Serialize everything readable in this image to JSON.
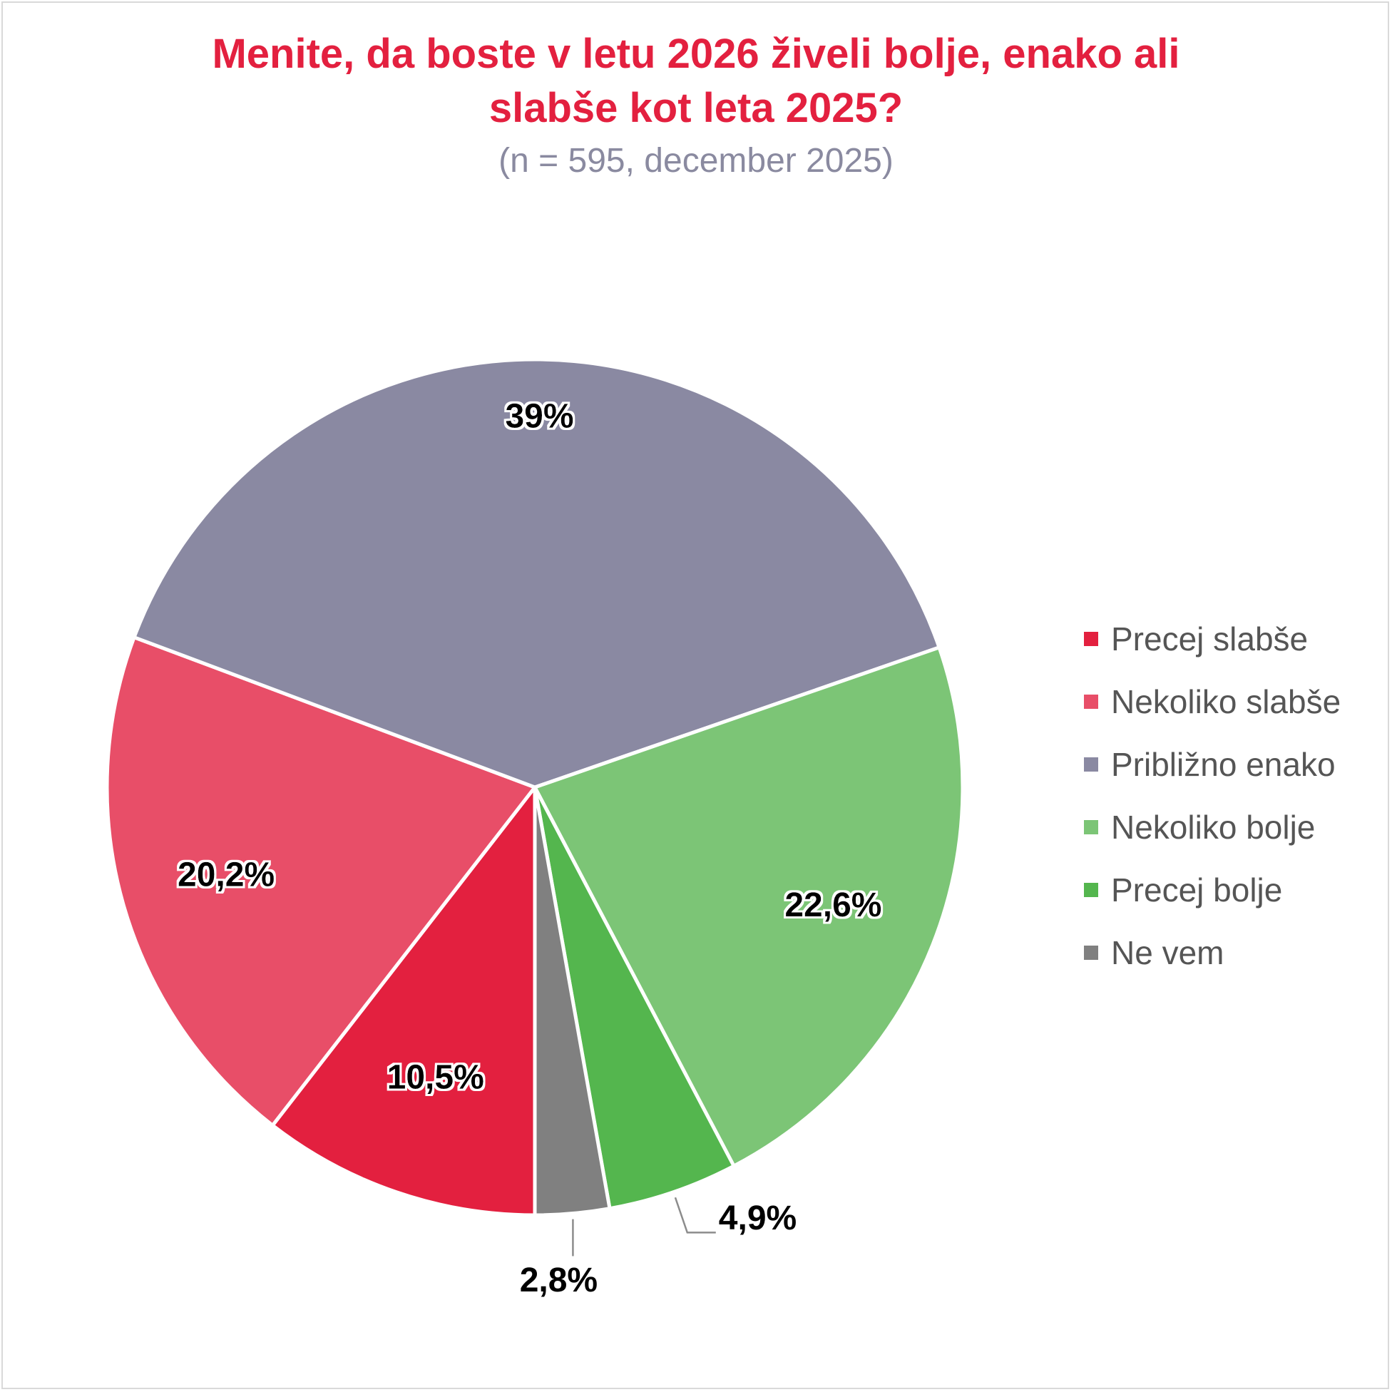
{
  "chart_data": {
    "type": "pie",
    "title_lines": [
      "Menite, da boste v letu 2026 živeli bolje, enako ali",
      "slabše kot leta 2025?"
    ],
    "subtitle": "(n = 595, december 2025)",
    "legend_position": "right",
    "start_angle_deg": 180,
    "direction": "clockwise",
    "slices": [
      {
        "label": "Precej slabše",
        "value": 10.5,
        "display": "10,5%",
        "color": "#e3203f",
        "label_style": "inside"
      },
      {
        "label": "Nekoliko slabše",
        "value": 20.2,
        "display": "20,2%",
        "color": "#e84e68",
        "label_style": "inside"
      },
      {
        "label": "Približno enako",
        "value": 39.0,
        "display": "39%",
        "color": "#8a89a2",
        "label_style": "inside"
      },
      {
        "label": "Nekoliko bolje",
        "value": 22.6,
        "display": "22,6%",
        "color": "#7cc576",
        "label_style": "inside"
      },
      {
        "label": "Precej bolje",
        "value": 4.9,
        "display": "4,9%",
        "color": "#54b64e",
        "label_style": "outside"
      },
      {
        "label": "Ne vem",
        "value": 2.8,
        "display": "2,8%",
        "color": "#808080",
        "label_style": "outside"
      }
    ]
  }
}
